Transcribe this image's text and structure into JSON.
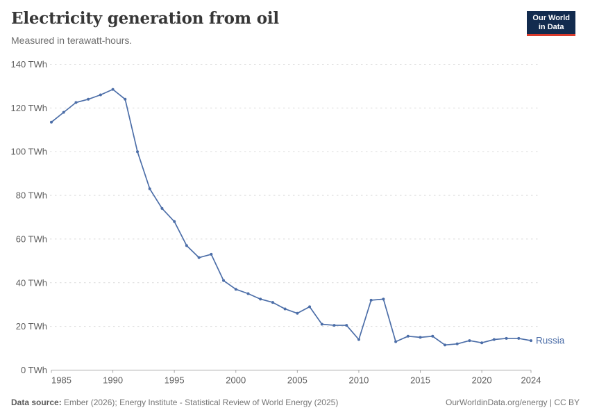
{
  "header": {
    "title": "Electricity generation from oil",
    "subtitle": "Measured in terawatt-hours."
  },
  "logo": {
    "line1": "Our World",
    "line2": "in Data"
  },
  "chart_data": {
    "type": "line",
    "title": "Electricity generation from oil",
    "subtitle": "Measured in terawatt-hours.",
    "unit": "TWh",
    "xlim": [
      1985,
      2024
    ],
    "ylim": [
      0,
      140
    ],
    "grid": "horizontal dashed",
    "legend": "end-of-line label",
    "xticks": [
      {
        "value": 1985,
        "label": "1985"
      },
      {
        "value": 1990,
        "label": "1990"
      },
      {
        "value": 1995,
        "label": "1995"
      },
      {
        "value": 2000,
        "label": "2000"
      },
      {
        "value": 2005,
        "label": "2005"
      },
      {
        "value": 2010,
        "label": "2010"
      },
      {
        "value": 2015,
        "label": "2015"
      },
      {
        "value": 2020,
        "label": "2020"
      },
      {
        "value": 2024,
        "label": "2024"
      }
    ],
    "yticks": [
      {
        "value": 0,
        "label": "0 TWh"
      },
      {
        "value": 20,
        "label": "20 TWh"
      },
      {
        "value": 40,
        "label": "40 TWh"
      },
      {
        "value": 60,
        "label": "60 TWh"
      },
      {
        "value": 80,
        "label": "80 TWh"
      },
      {
        "value": 100,
        "label": "100 TWh"
      },
      {
        "value": 120,
        "label": "120 TWh"
      },
      {
        "value": 140,
        "label": "140 TWh"
      }
    ],
    "series": [
      {
        "name": "Russia",
        "color": "#4C6EA8",
        "x": [
          1985,
          1986,
          1987,
          1988,
          1989,
          1990,
          1991,
          1992,
          1993,
          1994,
          1995,
          1996,
          1997,
          1998,
          1999,
          2000,
          2001,
          2002,
          2003,
          2004,
          2005,
          2006,
          2007,
          2008,
          2009,
          2010,
          2011,
          2012,
          2013,
          2014,
          2015,
          2016,
          2017,
          2018,
          2019,
          2020,
          2021,
          2022,
          2023,
          2024
        ],
        "values": [
          113.5,
          118,
          122.5,
          124,
          126,
          128.5,
          124,
          100,
          83,
          74,
          68,
          57,
          51.5,
          53,
          41,
          37,
          35,
          32.5,
          31,
          28,
          26,
          29,
          21,
          20.5,
          20.5,
          14,
          32,
          32.5,
          13,
          15.5,
          15,
          15.5,
          11.5,
          12,
          13.5,
          12.5,
          14,
          14.5,
          14.5,
          13.5
        ]
      }
    ]
  },
  "colors": {
    "line": "#4C6EA8",
    "gridline": "#dadada",
    "axis": "#a8a8a8",
    "tick_text": "#5e5e5e",
    "logo_bg": "#122B4E",
    "logo_accent": "#D93A2B"
  },
  "footer": {
    "source_label": "Data source:",
    "source_text": " Ember (2026); Energy Institute - Statistical Review of World Energy (2025)",
    "right_text": "OurWorldinData.org/energy | CC BY"
  }
}
